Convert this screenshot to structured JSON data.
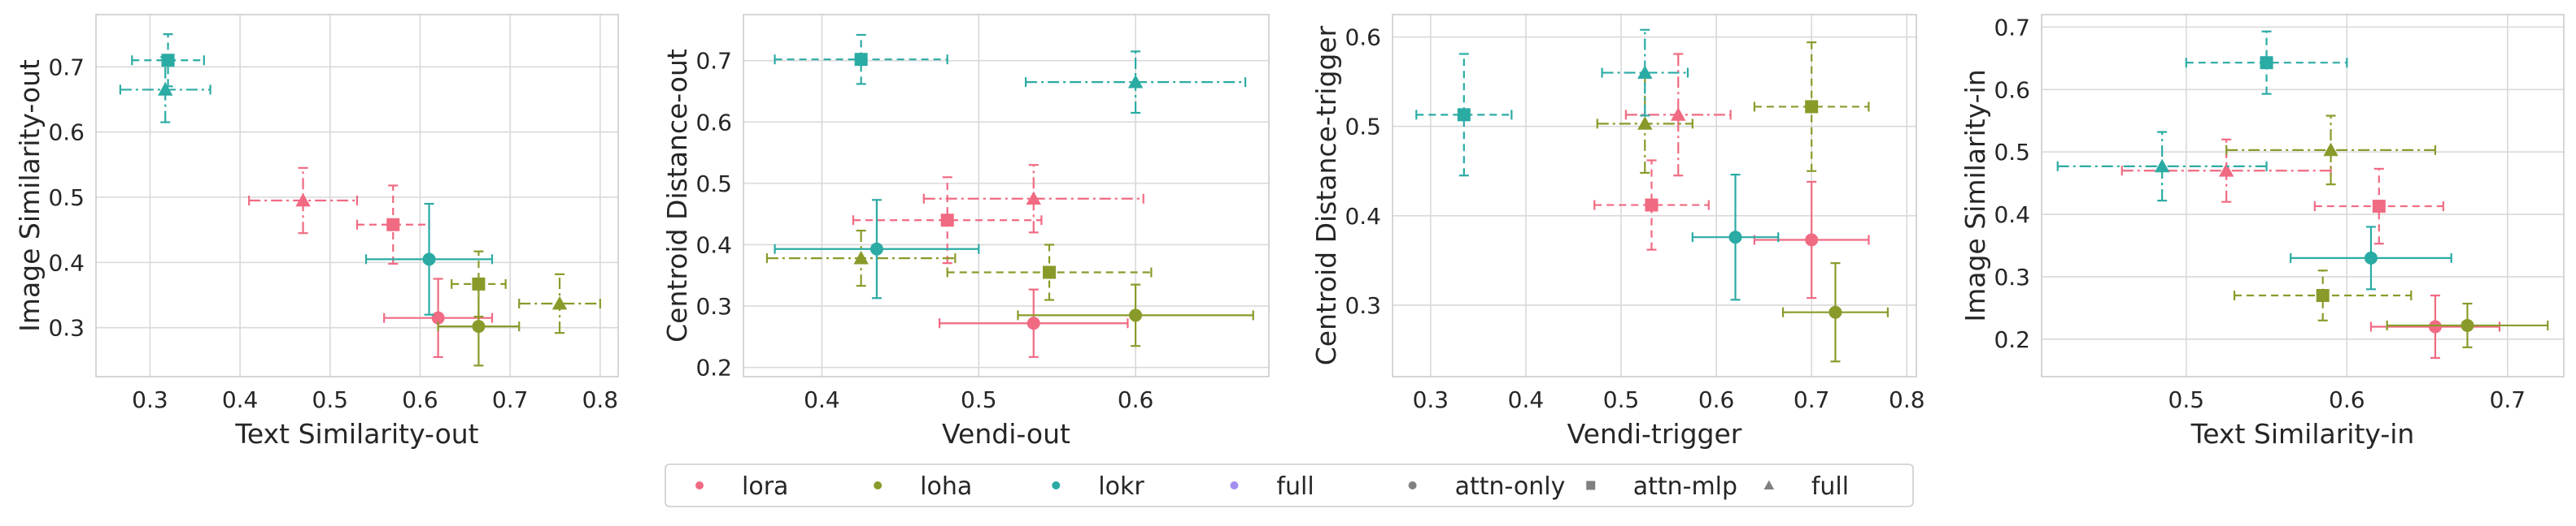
{
  "palette": {
    "lora": "#f06a82",
    "loha": "#8a9a2a",
    "lokr": "#2aaba4",
    "full": "#a48df0",
    "neutral": "#808080"
  },
  "legend": {
    "items": [
      {
        "label": "lora",
        "marker": "circle",
        "color": "#f06a82"
      },
      {
        "label": "loha",
        "marker": "circle",
        "color": "#8a9a2a"
      },
      {
        "label": "lokr",
        "marker": "circle",
        "color": "#2aaba4"
      },
      {
        "label": "full",
        "marker": "circle",
        "color": "#a48df0"
      },
      {
        "label": "attn-only",
        "marker": "circle",
        "color": "#808080"
      },
      {
        "label": "attn-mlp",
        "marker": "square",
        "color": "#808080"
      },
      {
        "label": "full",
        "marker": "triangle",
        "color": "#808080"
      }
    ]
  },
  "chart_data": [
    {
      "type": "scatter",
      "xlabel": "Text Similarity-out",
      "ylabel": "Image Similarity-out",
      "xlim": [
        0.24,
        0.82
      ],
      "ylim": [
        0.225,
        0.78
      ],
      "xticks": [
        "0.3",
        "0.4",
        "0.5",
        "0.6",
        "0.7",
        "0.8"
      ],
      "yticks": [
        "0.3",
        "0.4",
        "0.5",
        "0.6",
        "0.7"
      ],
      "grid": true,
      "points": [
        {
          "method": "lora",
          "scope": "attn-only",
          "x": 0.62,
          "y": 0.315,
          "xerr": 0.06,
          "yerr": 0.06
        },
        {
          "method": "lora",
          "scope": "attn-mlp",
          "x": 0.57,
          "y": 0.458,
          "xerr": 0.04,
          "yerr": 0.06
        },
        {
          "method": "lora",
          "scope": "full",
          "x": 0.47,
          "y": 0.495,
          "xerr": 0.06,
          "yerr": 0.05
        },
        {
          "method": "loha",
          "scope": "attn-only",
          "x": 0.665,
          "y": 0.302,
          "xerr": 0.045,
          "yerr": 0.06
        },
        {
          "method": "loha",
          "scope": "attn-mlp",
          "x": 0.665,
          "y": 0.367,
          "xerr": 0.03,
          "yerr": 0.05
        },
        {
          "method": "loha",
          "scope": "full",
          "x": 0.755,
          "y": 0.337,
          "xerr": 0.045,
          "yerr": 0.045
        },
        {
          "method": "lokr",
          "scope": "attn-only",
          "x": 0.61,
          "y": 0.405,
          "xerr": 0.07,
          "yerr": 0.085
        },
        {
          "method": "lokr",
          "scope": "attn-mlp",
          "x": 0.32,
          "y": 0.71,
          "xerr": 0.04,
          "yerr": 0.04
        },
        {
          "method": "lokr",
          "scope": "full",
          "x": 0.317,
          "y": 0.665,
          "xerr": 0.05,
          "yerr": 0.05
        }
      ]
    },
    {
      "type": "scatter",
      "xlabel": "Vendi-out",
      "ylabel": "Centroid Distance-out",
      "xlim": [
        0.35,
        0.685
      ],
      "ylim": [
        0.185,
        0.775
      ],
      "xticks": [
        "0.4",
        "0.5",
        "0.6"
      ],
      "yticks": [
        "0.2",
        "0.3",
        "0.4",
        "0.5",
        "0.6",
        "0.7"
      ],
      "grid": true,
      "points": [
        {
          "method": "lora",
          "scope": "attn-only",
          "x": 0.535,
          "y": 0.272,
          "xerr": 0.06,
          "yerr": 0.055
        },
        {
          "method": "lora",
          "scope": "attn-mlp",
          "x": 0.48,
          "y": 0.44,
          "xerr": 0.06,
          "yerr": 0.07
        },
        {
          "method": "lora",
          "scope": "full",
          "x": 0.535,
          "y": 0.475,
          "xerr": 0.07,
          "yerr": 0.055
        },
        {
          "method": "loha",
          "scope": "attn-only",
          "x": 0.6,
          "y": 0.285,
          "xerr": 0.075,
          "yerr": 0.05
        },
        {
          "method": "loha",
          "scope": "attn-mlp",
          "x": 0.545,
          "y": 0.355,
          "xerr": 0.065,
          "yerr": 0.045
        },
        {
          "method": "loha",
          "scope": "full",
          "x": 0.425,
          "y": 0.378,
          "xerr": 0.06,
          "yerr": 0.045
        },
        {
          "method": "lokr",
          "scope": "attn-only",
          "x": 0.435,
          "y": 0.393,
          "xerr": 0.065,
          "yerr": 0.08
        },
        {
          "method": "lokr",
          "scope": "attn-mlp",
          "x": 0.425,
          "y": 0.702,
          "xerr": 0.055,
          "yerr": 0.04
        },
        {
          "method": "lokr",
          "scope": "full",
          "x": 0.6,
          "y": 0.665,
          "xerr": 0.07,
          "yerr": 0.05
        }
      ]
    },
    {
      "type": "scatter",
      "xlabel": "Vendi-trigger",
      "ylabel": "Centroid Distance-trigger",
      "xlim": [
        0.26,
        0.81
      ],
      "ylim": [
        0.22,
        0.625
      ],
      "xticks": [
        "0.3",
        "0.4",
        "0.5",
        "0.6",
        "0.7",
        "0.8"
      ],
      "yticks": [
        "0.3",
        "0.4",
        "0.5",
        "0.6"
      ],
      "grid": true,
      "points": [
        {
          "method": "lora",
          "scope": "attn-only",
          "x": 0.7,
          "y": 0.373,
          "xerr": 0.06,
          "yerr": 0.065
        },
        {
          "method": "lora",
          "scope": "attn-mlp",
          "x": 0.532,
          "y": 0.412,
          "xerr": 0.06,
          "yerr": 0.05
        },
        {
          "method": "lora",
          "scope": "full",
          "x": 0.56,
          "y": 0.513,
          "xerr": 0.055,
          "yerr": 0.068
        },
        {
          "method": "loha",
          "scope": "attn-only",
          "x": 0.725,
          "y": 0.292,
          "xerr": 0.055,
          "yerr": 0.055
        },
        {
          "method": "loha",
          "scope": "attn-mlp",
          "x": 0.7,
          "y": 0.522,
          "xerr": 0.06,
          "yerr": 0.072
        },
        {
          "method": "loha",
          "scope": "full",
          "x": 0.525,
          "y": 0.503,
          "xerr": 0.05,
          "yerr": 0.055
        },
        {
          "method": "lokr",
          "scope": "attn-only",
          "x": 0.62,
          "y": 0.376,
          "xerr": 0.045,
          "yerr": 0.07
        },
        {
          "method": "lokr",
          "scope": "attn-mlp",
          "x": 0.335,
          "y": 0.513,
          "xerr": 0.05,
          "yerr": 0.068
        },
        {
          "method": "lokr",
          "scope": "full",
          "x": 0.525,
          "y": 0.56,
          "xerr": 0.045,
          "yerr": 0.048
        }
      ]
    },
    {
      "type": "scatter",
      "xlabel": "Text Similarity-in",
      "ylabel": "Image Similarity-in",
      "xlim": [
        0.41,
        0.735
      ],
      "ylim": [
        0.14,
        0.72
      ],
      "xticks": [
        "0.5",
        "0.6",
        "0.7"
      ],
      "yticks": [
        "0.2",
        "0.3",
        "0.4",
        "0.5",
        "0.6",
        "0.7"
      ],
      "grid": true,
      "points": [
        {
          "method": "lora",
          "scope": "attn-only",
          "x": 0.655,
          "y": 0.22,
          "xerr": 0.04,
          "yerr": 0.05
        },
        {
          "method": "lora",
          "scope": "attn-mlp",
          "x": 0.62,
          "y": 0.413,
          "xerr": 0.04,
          "yerr": 0.06
        },
        {
          "method": "lora",
          "scope": "full",
          "x": 0.525,
          "y": 0.47,
          "xerr": 0.065,
          "yerr": 0.05
        },
        {
          "method": "loha",
          "scope": "attn-only",
          "x": 0.675,
          "y": 0.222,
          "xerr": 0.05,
          "yerr": 0.035
        },
        {
          "method": "loha",
          "scope": "attn-mlp",
          "x": 0.585,
          "y": 0.27,
          "xerr": 0.055,
          "yerr": 0.04
        },
        {
          "method": "loha",
          "scope": "full",
          "x": 0.59,
          "y": 0.503,
          "xerr": 0.065,
          "yerr": 0.055
        },
        {
          "method": "lokr",
          "scope": "attn-only",
          "x": 0.615,
          "y": 0.33,
          "xerr": 0.05,
          "yerr": 0.05
        },
        {
          "method": "lokr",
          "scope": "attn-mlp",
          "x": 0.55,
          "y": 0.643,
          "xerr": 0.05,
          "yerr": 0.05
        },
        {
          "method": "lokr",
          "scope": "full",
          "x": 0.485,
          "y": 0.477,
          "xerr": 0.065,
          "yerr": 0.055
        }
      ]
    }
  ]
}
